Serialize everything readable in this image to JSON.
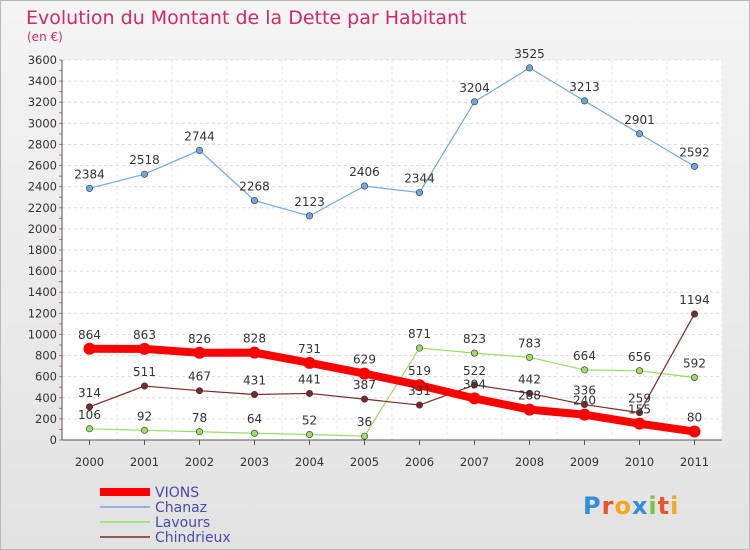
{
  "chart_data": {
    "type": "line",
    "title": "Evolution du Montant de la Dette par Habitant",
    "subtitle": "(en €)",
    "x": [
      "2000",
      "2001",
      "2002",
      "2003",
      "2004",
      "2005",
      "2006",
      "2007",
      "2008",
      "2009",
      "2010",
      "2011"
    ],
    "ylim": [
      0,
      3600
    ],
    "yticks": [
      0,
      200,
      400,
      600,
      800,
      1000,
      1200,
      1400,
      1600,
      1800,
      2000,
      2200,
      2400,
      2600,
      2800,
      3000,
      3200,
      3400,
      3600
    ],
    "grid": true,
    "legend_position": "bottom-left",
    "series": [
      {
        "name": "VIONS",
        "color": "#ff0000",
        "values": [
          864,
          863,
          826,
          828,
          731,
          629,
          519,
          394,
          288,
          240,
          155,
          80
        ],
        "labels": [
          "864",
          "863",
          "826",
          "828",
          "731",
          "629",
          "519",
          "394",
          "288",
          "240",
          "155",
          "80"
        ]
      },
      {
        "name": "Chanaz",
        "color": "#6fa8dc",
        "values": [
          2384,
          2518,
          2744,
          2268,
          2123,
          2406,
          2344,
          3204,
          3525,
          3213,
          2901,
          2592
        ],
        "labels": [
          "2384",
          "2518",
          "2744",
          "2268",
          "2123",
          "2406",
          "2344",
          "3204",
          "3525",
          "3213",
          "2901",
          "2592"
        ]
      },
      {
        "name": "Lavours",
        "color": "#99dd66",
        "values": [
          106,
          92,
          78,
          64,
          52,
          36,
          871,
          823,
          783,
          664,
          656,
          592
        ],
        "labels": [
          "106",
          "92",
          "78",
          "64",
          "52",
          "36",
          "871",
          "823",
          "783",
          "664",
          "656",
          "592"
        ]
      },
      {
        "name": "Chindrieux",
        "color": "#7a2a2a",
        "values": [
          314,
          511,
          467,
          431,
          441,
          387,
          331,
          522,
          442,
          336,
          259,
          1194
        ],
        "labels": [
          "314",
          "511",
          "467",
          "431",
          "441",
          "387",
          "331",
          "522",
          "442",
          "336",
          "259",
          "1194"
        ]
      }
    ]
  },
  "branding": {
    "logo_text": "Proxiti"
  }
}
